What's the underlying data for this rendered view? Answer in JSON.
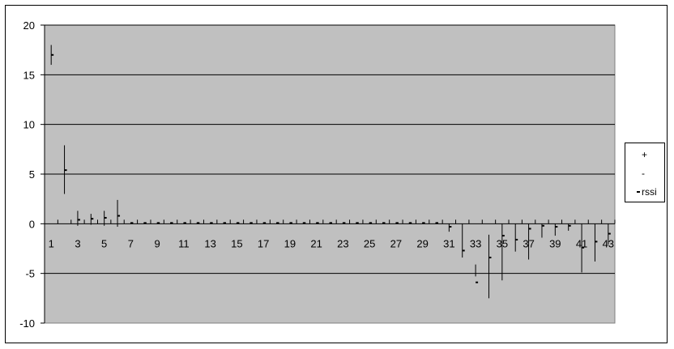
{
  "chart_data": {
    "type": "stock",
    "plot_background": "#c0c0c0",
    "line_color": "#000000",
    "grid": true,
    "legend_position": "right",
    "ylim": [
      -10,
      20
    ],
    "yticks": [
      "20",
      "15",
      "10",
      "5",
      "0",
      "-5",
      "-10"
    ],
    "yticks_values": [
      20,
      15,
      10,
      5,
      0,
      -5,
      -10
    ],
    "xticks": [
      "1",
      "3",
      "5",
      "7",
      "9",
      "11",
      "13",
      "15",
      "17",
      "19",
      "21",
      "23",
      "25",
      "27",
      "29",
      "31",
      "33",
      "35",
      "37",
      "39",
      "41",
      "43"
    ],
    "categories": [
      "1",
      "2",
      "3",
      "4",
      "5",
      "6",
      "7",
      "8",
      "9",
      "10",
      "11",
      "12",
      "13",
      "14",
      "15",
      "16",
      "17",
      "18",
      "19",
      "20",
      "21",
      "22",
      "23",
      "24",
      "25",
      "26",
      "27",
      "28",
      "29",
      "30",
      "31",
      "32",
      "33",
      "34",
      "35",
      "36",
      "37",
      "38",
      "39",
      "40",
      "41",
      "42",
      "43"
    ],
    "series": [
      {
        "name": "+",
        "values": [
          18.0,
          7.9,
          1.3,
          1.0,
          1.3,
          2.4,
          0.15,
          0.15,
          0.15,
          0.15,
          0.15,
          0.15,
          0.15,
          0.15,
          0.15,
          0.15,
          0.15,
          0.15,
          0.15,
          0.15,
          0.15,
          0.15,
          0.15,
          0.15,
          0.15,
          0.15,
          0.15,
          0.15,
          0.15,
          0.15,
          0.0,
          0.0,
          -4.1,
          -1.1,
          0.0,
          0.0,
          0.0,
          0.0,
          0.0,
          0.0,
          0.0,
          0.0,
          0.0
        ]
      },
      {
        "name": "-",
        "values": [
          16.0,
          3.0,
          -0.2,
          -0.1,
          -0.2,
          -0.3,
          0.0,
          0.0,
          0.0,
          0.0,
          0.0,
          0.0,
          0.0,
          0.0,
          0.0,
          0.0,
          0.0,
          0.0,
          0.0,
          0.0,
          0.0,
          0.0,
          0.0,
          0.0,
          0.0,
          0.0,
          0.0,
          0.0,
          0.0,
          0.0,
          -0.8,
          -3.4,
          -5.3,
          -7.5,
          -5.7,
          -2.8,
          -3.6,
          -1.4,
          -1.2,
          -0.7,
          -4.9,
          -3.8,
          -2.1
        ]
      },
      {
        "name": "rssi",
        "values": [
          17.0,
          5.4,
          0.4,
          0.5,
          0.6,
          0.8,
          0.08,
          0.08,
          0.08,
          0.08,
          0.08,
          0.08,
          0.08,
          0.08,
          0.08,
          0.08,
          0.08,
          0.08,
          0.08,
          0.08,
          0.08,
          0.08,
          0.08,
          0.08,
          0.08,
          0.08,
          0.08,
          0.08,
          0.08,
          0.08,
          -0.3,
          -2.7,
          -5.9,
          -3.4,
          -1.2,
          -1.6,
          -0.5,
          -0.2,
          -0.3,
          -0.2,
          -2.4,
          -1.8,
          -1.0
        ]
      }
    ]
  },
  "legend": {
    "items": [
      {
        "label": "+"
      },
      {
        "label": "-"
      },
      {
        "label": "rssi"
      }
    ]
  }
}
